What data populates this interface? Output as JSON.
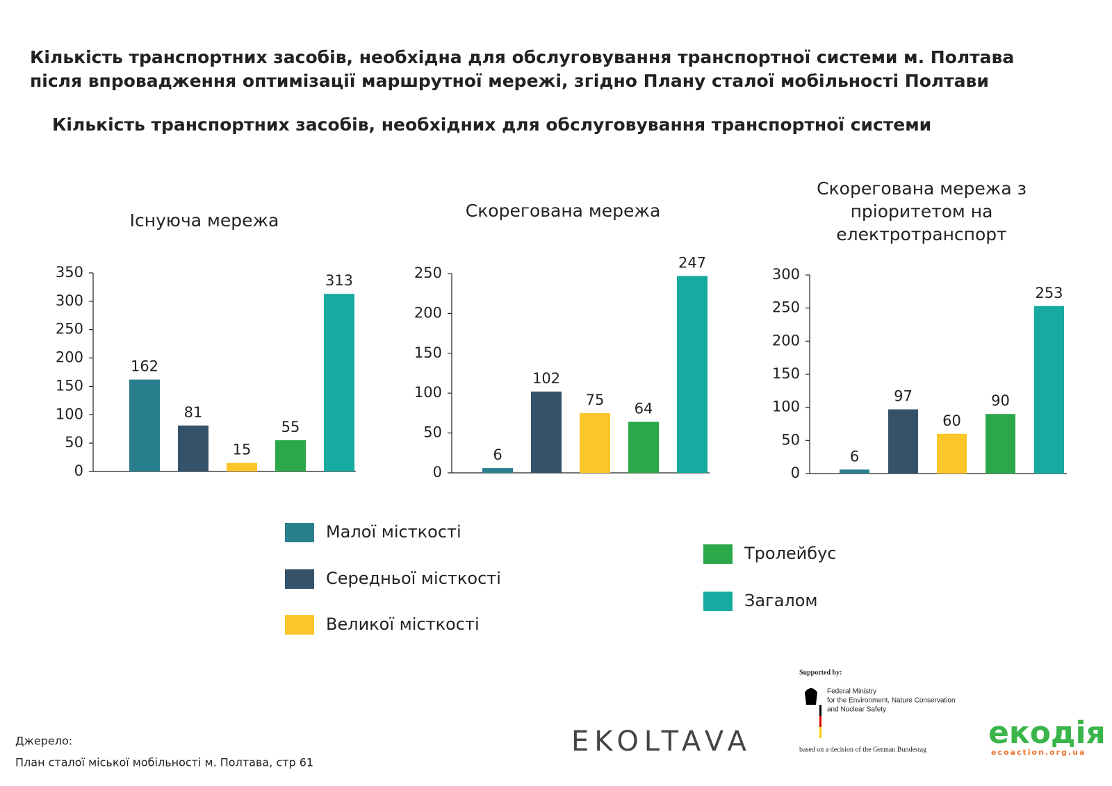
{
  "header": {
    "title": [
      "Кількість транспортних засобів, необхідна для обслуговування транспортної системи м. Полтава",
      "після впровадження оптимізації маршрутної мережі, згідно Плану сталої мобільності Полтави"
    ],
    "subtitle": "Кількість транспортних засобів, необхідних для обслуговування транспортної системи"
  },
  "legend": [
    {
      "name": "Малої місткості",
      "color": "#2a7f8f"
    },
    {
      "name": "Середньої місткості",
      "color": "#34536b"
    },
    {
      "name": "Великої місткості",
      "color": "#fcc62a"
    },
    {
      "name": "Тролейбус",
      "color": "#2aa84a"
    },
    {
      "name": "Загалом",
      "color": "#16aaa0"
    }
  ],
  "chart_data": [
    {
      "type": "bar",
      "title": [
        "Існуюча мережа"
      ],
      "values": [
        162,
        81,
        15,
        55,
        313
      ],
      "ylim": [
        0,
        350
      ],
      "yticks": [
        0,
        50,
        100,
        150,
        200,
        250,
        300,
        350
      ]
    },
    {
      "type": "bar",
      "title": [
        "Скорегована мережа"
      ],
      "values": [
        6,
        102,
        75,
        64,
        247
      ],
      "ylim": [
        0,
        250
      ],
      "yticks": [
        0,
        50,
        100,
        150,
        200,
        250
      ]
    },
    {
      "type": "bar",
      "title": [
        "Скорегована мережа з",
        "пріоритетом на",
        "електротранспорт"
      ],
      "values": [
        6,
        97,
        60,
        90,
        253
      ],
      "ylim": [
        0,
        300
      ],
      "yticks": [
        0,
        50,
        100,
        150,
        200,
        250,
        300
      ]
    }
  ],
  "source": [
    "Джерело:",
    "План сталої міської мобільності м. Полтава, стр 61"
  ],
  "logos": {
    "ekoltava": "EKOLTAVA",
    "supported_by": "Supported by:",
    "ministry": [
      "Federal Ministry",
      "for the Environment, Nature Conservation",
      "and Nuclear Safety"
    ],
    "bundestag": "based on a decision of the German Bundestag",
    "ekodia": "екодія",
    "ekodia_url": "ecoaction.org.ua"
  }
}
